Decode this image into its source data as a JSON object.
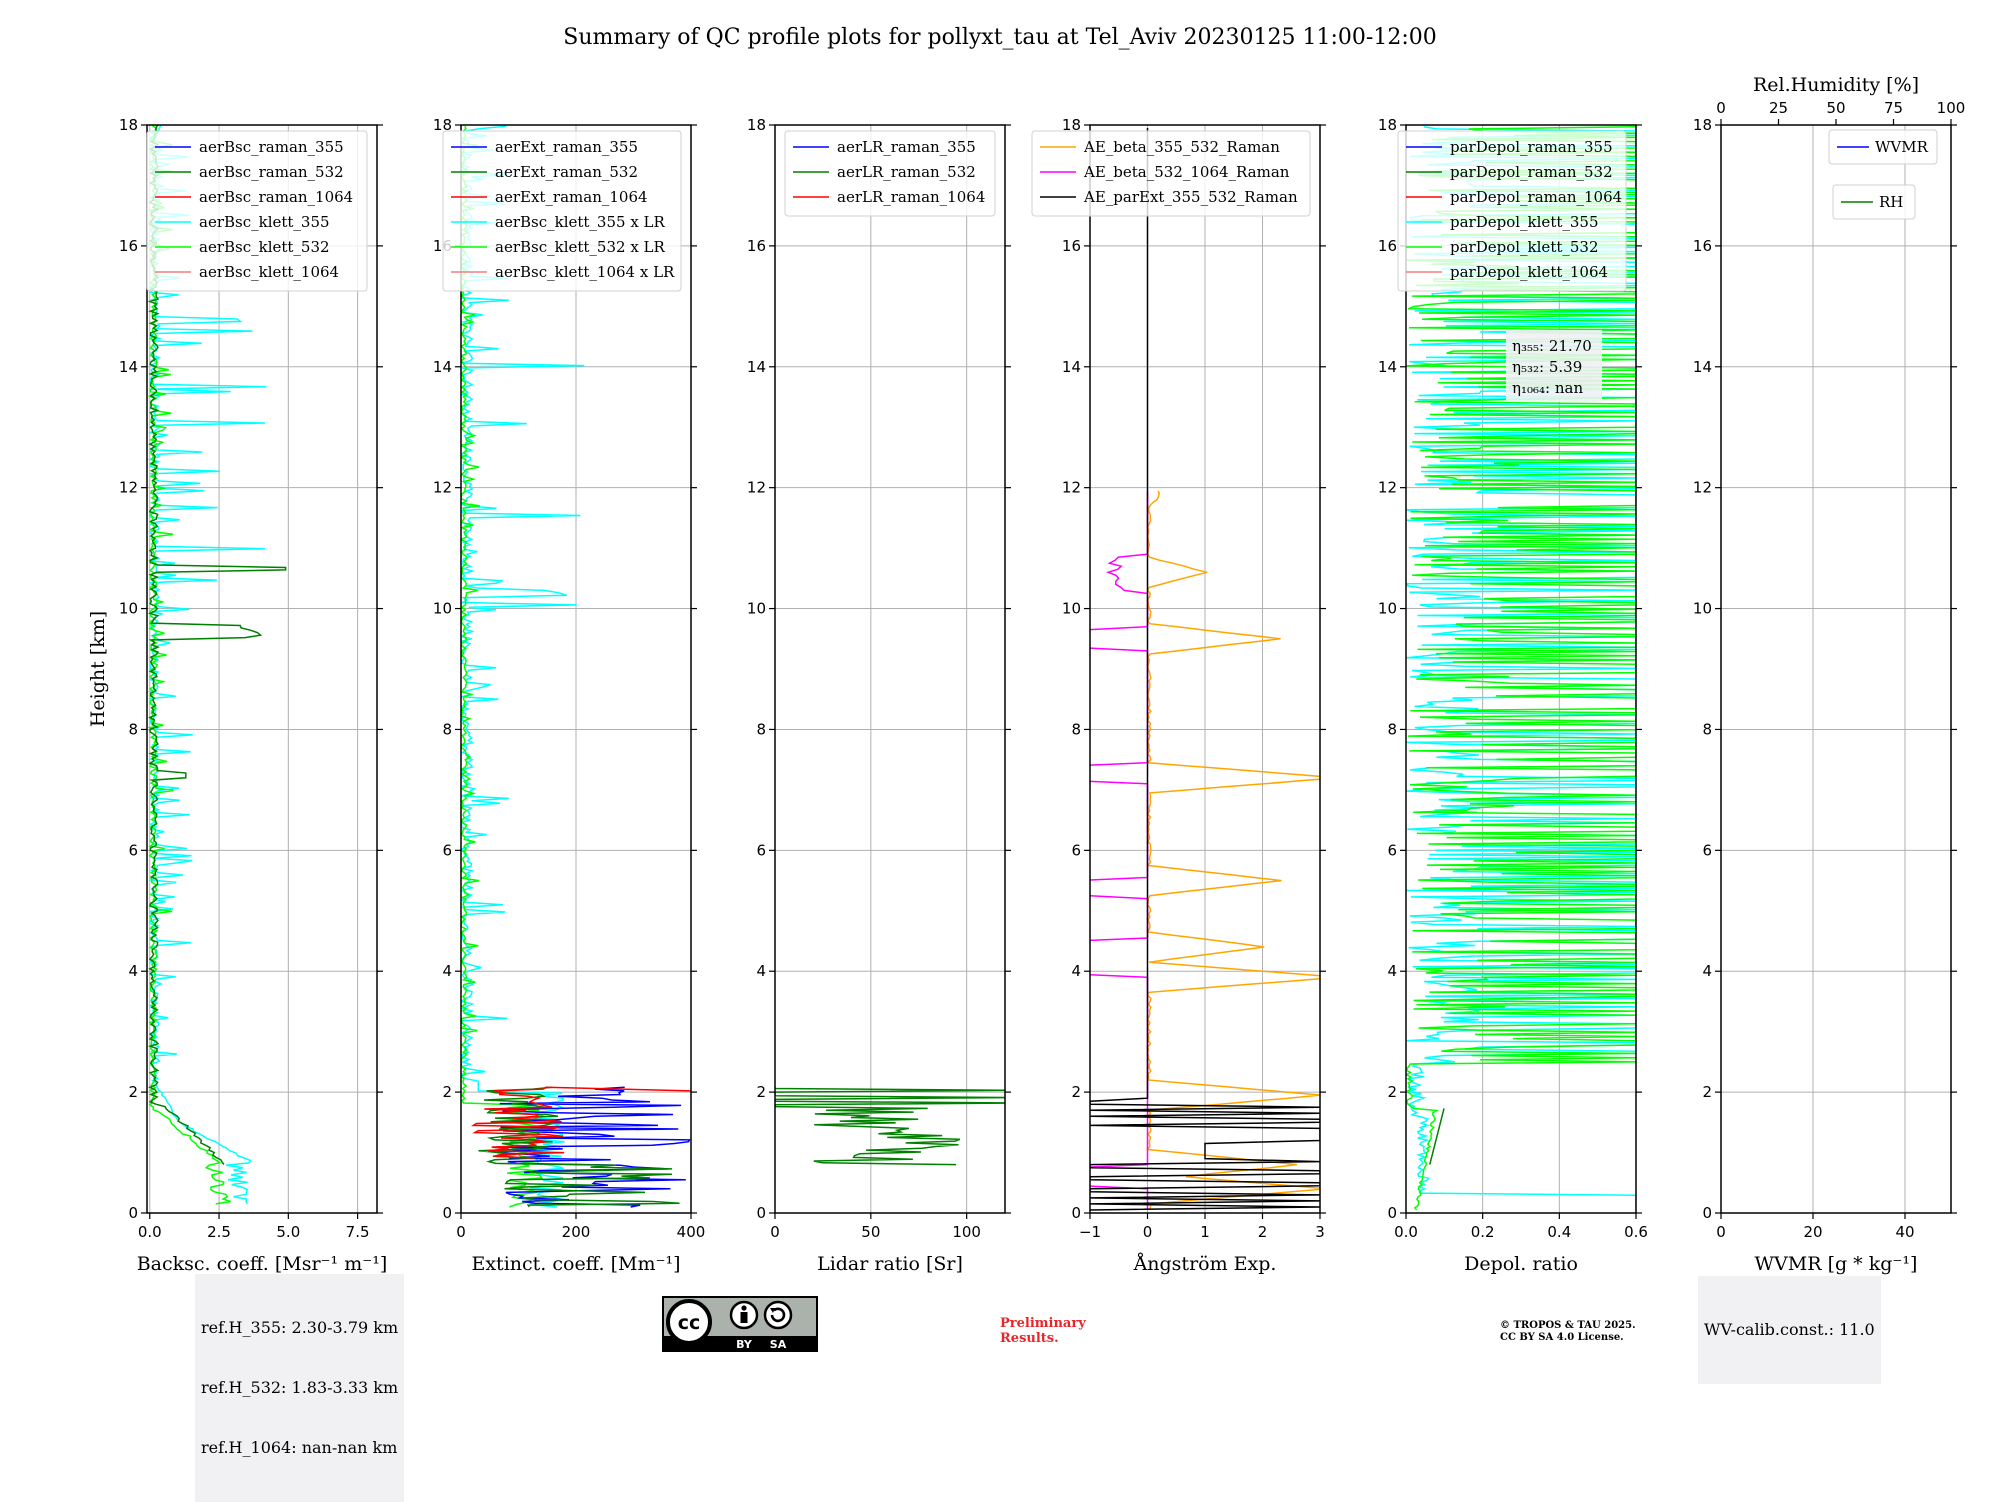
{
  "title": "Summary of QC profile plots for pollyxt_tau at Tel_Aviv 20230125 11:00-12:00",
  "y_label": "Height [km]",
  "colors": {
    "raman_355": "#0000ff",
    "raman_532": "#008000",
    "raman_1064": "#ff0000",
    "klett_355": "#00ffff",
    "klett_532": "#00ff00",
    "klett_1064": "#f08080",
    "ae_355_532": "#ffa500",
    "ae_532_1064": "#ff00ff",
    "ae_ext": "#000000",
    "prelim": "#e8262a"
  },
  "chart_data": [
    {
      "type": "line",
      "name": "backscatter",
      "xlabel": "Backsc. coeff. [Msr⁻¹ m⁻¹]",
      "xlim": [
        -0.1,
        8.2
      ],
      "ylim": [
        0,
        18
      ],
      "xticks": [
        "0.0",
        "2.5",
        "5.0",
        "7.5"
      ],
      "xtick_values": [
        0,
        2.5,
        5.0,
        7.5
      ],
      "yticks": [
        "0",
        "2",
        "4",
        "6",
        "8",
        "10",
        "12",
        "14",
        "16",
        "18"
      ],
      "grid": true,
      "legend_position": "top-right",
      "legend": [
        "aerBsc_raman_355",
        "aerBsc_raman_532",
        "aerBsc_raman_1064",
        "aerBsc_klett_355",
        "aerBsc_klett_532",
        "aerBsc_klett_1064"
      ]
    },
    {
      "type": "line",
      "name": "extinction",
      "xlabel": "Extinct. coeff. [Mm⁻¹]",
      "xlim": [
        0,
        400
      ],
      "ylim": [
        0,
        18
      ],
      "xticks": [
        "0",
        "200",
        "400"
      ],
      "xtick_values": [
        0,
        200,
        400
      ],
      "yticks": [
        "0",
        "2",
        "4",
        "6",
        "8",
        "10",
        "12",
        "14",
        "16",
        "18"
      ],
      "grid": true,
      "legend_position": "top-right",
      "legend": [
        "aerExt_raman_355",
        "aerExt_raman_532",
        "aerExt_raman_1064",
        "aerBsc_klett_355 x LR",
        "aerBsc_klett_532 x LR",
        "aerBsc_klett_1064 x LR"
      ]
    },
    {
      "type": "line",
      "name": "lidar_ratio",
      "xlabel": "Lidar ratio [Sr]",
      "xlim": [
        0,
        120
      ],
      "ylim": [
        0,
        18
      ],
      "xticks": [
        "0",
        "50",
        "100"
      ],
      "xtick_values": [
        0,
        50,
        100
      ],
      "yticks": [
        "0",
        "2",
        "4",
        "6",
        "8",
        "10",
        "12",
        "14",
        "16",
        "18"
      ],
      "grid": true,
      "legend_position": "top-right",
      "legend": [
        "aerLR_raman_355",
        "aerLR_raman_532",
        "aerLR_raman_1064"
      ]
    },
    {
      "type": "line",
      "name": "angstrom",
      "xlabel": "Ångström Exp.",
      "xlim": [
        -1,
        3
      ],
      "ylim": [
        0,
        18
      ],
      "xticks": [
        "−1",
        "0",
        "1",
        "2",
        "3"
      ],
      "xtick_values": [
        -1,
        0,
        1,
        2,
        3
      ],
      "yticks": [
        "0",
        "2",
        "4",
        "6",
        "8",
        "10",
        "12",
        "14",
        "16",
        "18"
      ],
      "grid": true,
      "legend_position": "top-right",
      "legend": [
        "AE_beta_355_532_Raman",
        "AE_beta_532_1064_Raman",
        "AE_parExt_355_532_Raman"
      ]
    },
    {
      "type": "line",
      "name": "depol",
      "xlabel": "Depol. ratio",
      "xlim": [
        0,
        0.6
      ],
      "ylim": [
        0,
        18
      ],
      "xticks": [
        "0.0",
        "0.2",
        "0.4",
        "0.6"
      ],
      "xtick_values": [
        0,
        0.2,
        0.4,
        0.6
      ],
      "yticks": [
        "0",
        "2",
        "4",
        "6",
        "8",
        "10",
        "12",
        "14",
        "16",
        "18"
      ],
      "grid": true,
      "legend_position": "top-right",
      "legend": [
        "parDepol_raman_355",
        "parDepol_raman_532",
        "parDepol_raman_1064",
        "parDepol_klett_355",
        "parDepol_klett_532",
        "parDepol_klett_1064"
      ],
      "annotation": [
        "η₃₅₅: 21.70",
        "η₅₃₂: 5.39",
        "η₁₀₆₄: nan"
      ]
    },
    {
      "type": "line",
      "name": "wvmr",
      "xlabel": "WVMR [g * kg⁻¹]",
      "xlim": [
        0,
        50
      ],
      "ylim": [
        0,
        18
      ],
      "xticks": [
        "0",
        "20",
        "40"
      ],
      "xtick_values": [
        0,
        20,
        40
      ],
      "top_xlabel": "Rel.Humidity [%]",
      "top_xlim": [
        0,
        100
      ],
      "top_xticks": [
        "0",
        "25",
        "50",
        "75",
        "100"
      ],
      "top_xtick_values": [
        0,
        25,
        50,
        75,
        100
      ],
      "yticks": [
        "0",
        "2",
        "4",
        "6",
        "8",
        "10",
        "12",
        "14",
        "16",
        "18"
      ],
      "grid": true,
      "legend_position": "top-right",
      "legend": [
        "WVMR",
        "RH"
      ]
    }
  ],
  "notes": {
    "ref_heights": [
      "ref.H_355: 2.30-3.79 km",
      "ref.H_532: 1.83-3.33 km",
      "ref.H_1064: nan-nan km"
    ],
    "wv_calib": "WV-calib.const.: 11.0",
    "preliminary": [
      "Preliminary",
      "Results."
    ],
    "copyright": [
      "© TROPOS & TAU 2025.",
      "CC BY SA 4.0 License."
    ],
    "license_badge": [
      "BY",
      "SA"
    ]
  }
}
